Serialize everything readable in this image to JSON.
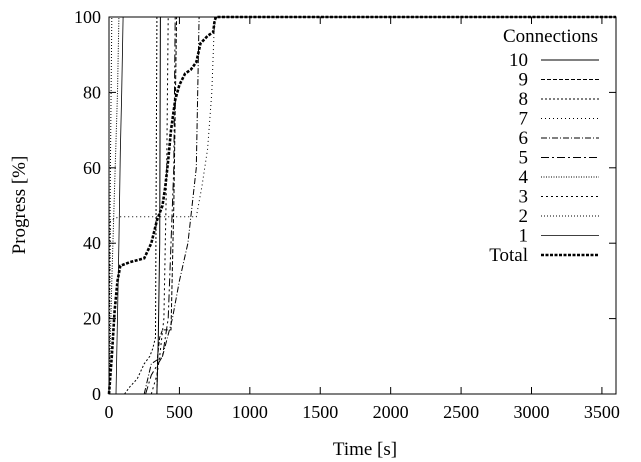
{
  "chart_data": {
    "type": "line",
    "title": "",
    "xlabel": "Time [s]",
    "ylabel": "Progress [%]",
    "xlim": [
      0,
      3600
    ],
    "ylim": [
      0,
      100
    ],
    "xticks": [
      0,
      500,
      1000,
      1500,
      2000,
      2500,
      3000,
      3500
    ],
    "yticks": [
      0,
      20,
      40,
      60,
      80,
      100
    ],
    "grid": false,
    "legend": {
      "title": "Connections",
      "position": "top-right"
    },
    "series": [
      {
        "name": "10",
        "style": "solid",
        "points": [
          [
            340,
            0
          ],
          [
            350,
            15
          ],
          [
            360,
            40
          ],
          [
            365,
            100
          ],
          [
            3600,
            100
          ]
        ]
      },
      {
        "name": "9",
        "style": "dashed",
        "points": [
          [
            340,
            0
          ],
          [
            345,
            10
          ],
          [
            360,
            15
          ],
          [
            380,
            17
          ],
          [
            440,
            17
          ],
          [
            460,
            50
          ],
          [
            480,
            100
          ],
          [
            3600,
            100
          ]
        ]
      },
      {
        "name": "8",
        "style": "dotted",
        "points": [
          [
            110,
            0
          ],
          [
            150,
            2
          ],
          [
            200,
            4
          ],
          [
            250,
            8
          ],
          [
            290,
            10
          ],
          [
            310,
            12
          ],
          [
            330,
            15
          ],
          [
            340,
            100
          ],
          [
            3600,
            100
          ]
        ]
      },
      {
        "name": "7",
        "style": "dotted-sparse",
        "points": [
          [
            0,
            0
          ],
          [
            5,
            20
          ],
          [
            10,
            46
          ],
          [
            70,
            47
          ],
          [
            350,
            47
          ],
          [
            620,
            47
          ],
          [
            660,
            55
          ],
          [
            700,
            65
          ],
          [
            730,
            80
          ],
          [
            745,
            95
          ],
          [
            750,
            100
          ],
          [
            3600,
            100
          ]
        ]
      },
      {
        "name": "6",
        "style": "dashdot",
        "points": [
          [
            250,
            0
          ],
          [
            300,
            8
          ],
          [
            380,
            10
          ],
          [
            450,
            20
          ],
          [
            500,
            30
          ],
          [
            560,
            40
          ],
          [
            620,
            60
          ],
          [
            640,
            100
          ],
          [
            3600,
            100
          ]
        ]
      },
      {
        "name": "5",
        "style": "dashdot-long",
        "points": [
          [
            260,
            0
          ],
          [
            300,
            5
          ],
          [
            380,
            10
          ],
          [
            420,
            20
          ],
          [
            440,
            40
          ],
          [
            460,
            60
          ],
          [
            470,
            100
          ],
          [
            3600,
            100
          ]
        ]
      },
      {
        "name": "4",
        "style": "dotted-dense",
        "points": [
          [
            0,
            0
          ],
          [
            10,
            15
          ],
          [
            20,
            30
          ],
          [
            40,
            55
          ],
          [
            60,
            80
          ],
          [
            70,
            100
          ],
          [
            3600,
            100
          ]
        ]
      },
      {
        "name": "3",
        "style": "dotted-medium",
        "points": [
          [
            300,
            0
          ],
          [
            340,
            5
          ],
          [
            360,
            10
          ],
          [
            390,
            20
          ],
          [
            410,
            60
          ],
          [
            420,
            100
          ],
          [
            3600,
            100
          ]
        ]
      },
      {
        "name": "2",
        "style": "dotted-fine",
        "points": [
          [
            0,
            0
          ],
          [
            5,
            30
          ],
          [
            10,
            60
          ],
          [
            15,
            80
          ],
          [
            20,
            100
          ],
          [
            3600,
            100
          ]
        ]
      },
      {
        "name": "1",
        "style": "solid-thin",
        "points": [
          [
            50,
            0
          ],
          [
            70,
            40
          ],
          [
            80,
            64
          ],
          [
            90,
            80
          ],
          [
            100,
            100
          ],
          [
            3600,
            100
          ]
        ]
      },
      {
        "name": "Total",
        "style": "bold-dashed",
        "points": [
          [
            0,
            0
          ],
          [
            20,
            10
          ],
          [
            40,
            22
          ],
          [
            60,
            30
          ],
          [
            80,
            34
          ],
          [
            150,
            35
          ],
          [
            250,
            36
          ],
          [
            300,
            40
          ],
          [
            320,
            43
          ],
          [
            340,
            46
          ],
          [
            380,
            50
          ],
          [
            400,
            55
          ],
          [
            420,
            62
          ],
          [
            440,
            70
          ],
          [
            470,
            78
          ],
          [
            500,
            82
          ],
          [
            540,
            85
          ],
          [
            580,
            86
          ],
          [
            620,
            88
          ],
          [
            650,
            93
          ],
          [
            700,
            95
          ],
          [
            740,
            96
          ],
          [
            750,
            99
          ],
          [
            760,
            100
          ],
          [
            3600,
            100
          ]
        ]
      }
    ]
  }
}
